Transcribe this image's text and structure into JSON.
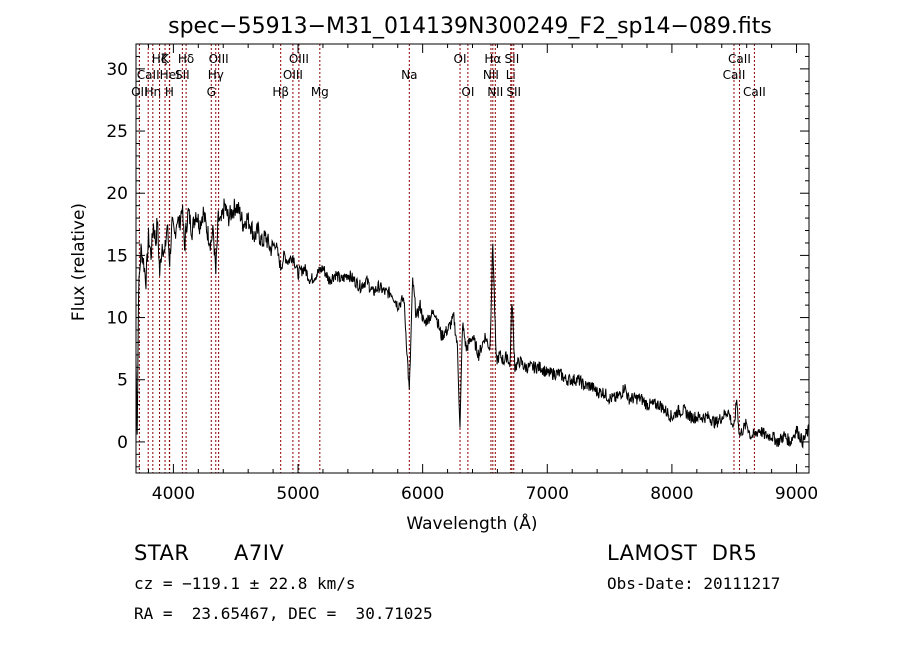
{
  "chart_data": {
    "type": "line",
    "title": "spec−55913−M31_014139N300249_F2_sp14−089.fits",
    "xlabel": "Wavelength (Å)",
    "ylabel": "Flux (relative)",
    "xlim": [
      3700,
      9100
    ],
    "ylim": [
      -2.5,
      32
    ],
    "xticks": [
      4000,
      5000,
      6000,
      7000,
      8000,
      9000
    ],
    "yticks": [
      0,
      5,
      10,
      15,
      20,
      25,
      30
    ],
    "grid": false,
    "series": [
      {
        "x": [
          3700,
          3710,
          3720,
          3740,
          3760,
          3780,
          3800,
          3820,
          3840,
          3860,
          3870,
          3890,
          3910,
          3930,
          3950,
          3970,
          3990,
          4010,
          4030,
          4050,
          4070,
          4090,
          4100,
          4120,
          4150,
          4180,
          4210,
          4240,
          4270,
          4300,
          4320,
          4340,
          4360,
          4380,
          4410,
          4440,
          4470,
          4500,
          4530,
          4560,
          4590,
          4620,
          4650,
          4680,
          4710,
          4740,
          4780,
          4820,
          4861,
          4890,
          4920,
          4960,
          5000,
          5050,
          5100,
          5150,
          5200,
          5250,
          5300,
          5350,
          5400,
          5450,
          5500,
          5550,
          5600,
          5650,
          5700,
          5750,
          5800,
          5850,
          5893,
          5920,
          5950,
          5980,
          6010,
          6050,
          6100,
          6150,
          6200,
          6250,
          6280,
          6300,
          6320,
          6350,
          6400,
          6450,
          6500,
          6540,
          6563,
          6590,
          6620,
          6650,
          6680,
          6700,
          6716,
          6740,
          6780,
          6820,
          6860,
          6900,
          6950,
          7000,
          7050,
          7100,
          7150,
          7200,
          7250,
          7300,
          7350,
          7400,
          7450,
          7500,
          7550,
          7600,
          7620,
          7650,
          7700,
          7750,
          7800,
          7850,
          7900,
          7950,
          8000,
          8050,
          8100,
          8150,
          8200,
          8250,
          8300,
          8350,
          8400,
          8450,
          8498,
          8520,
          8542,
          8570,
          8600,
          8630,
          8662,
          8700,
          8750,
          8800,
          8850,
          8900,
          8950,
          9000,
          9050,
          9100
        ],
        "y": [
          6.5,
          1,
          12,
          15.5,
          14.5,
          13,
          16.5,
          15,
          17.5,
          16,
          18,
          13.5,
          16,
          15,
          17.5,
          14.5,
          17.5,
          16.5,
          18,
          17.5,
          19,
          15.5,
          17,
          18.5,
          17,
          18.5,
          17.5,
          18.5,
          17,
          16,
          17,
          13.5,
          18,
          17.5,
          19,
          18,
          18.5,
          19,
          18.5,
          17.5,
          18,
          17.5,
          16.5,
          17,
          16,
          16.5,
          15.5,
          16,
          14,
          15,
          14.5,
          15,
          13.5,
          14,
          13,
          13.5,
          14,
          13,
          13.5,
          13,
          13.5,
          13,
          12.5,
          13,
          12,
          12.5,
          12,
          12,
          11,
          11.5,
          4,
          13,
          10,
          11,
          9.5,
          10,
          10.5,
          8.5,
          9,
          10,
          7.5,
          1,
          9.5,
          7.5,
          8.5,
          7,
          8.5,
          7.5,
          16,
          6.5,
          7,
          6.5,
          7,
          6,
          11.5,
          6,
          6.5,
          6,
          6,
          6,
          6,
          5.5,
          5.5,
          5.5,
          5,
          5,
          5,
          4.5,
          4.5,
          4,
          4,
          3.5,
          3.5,
          4,
          4.5,
          3.5,
          3.5,
          3.5,
          3,
          3,
          3,
          2.5,
          2,
          2.5,
          2.5,
          2,
          2,
          2,
          2,
          1.5,
          2,
          2.5,
          1,
          3.5,
          0.5,
          1,
          1.5,
          0.5,
          0.5,
          1,
          0.5,
          0.5,
          0,
          0.5,
          0,
          1,
          0,
          1
        ]
      }
    ],
    "lines": [
      {
        "x": 3727,
        "label": "OII",
        "row": 3
      },
      {
        "x": 3798,
        "label": "CaII",
        "row": 2
      },
      {
        "x": 3835,
        "label": "Hη",
        "row": 3
      },
      {
        "x": 3889,
        "label": "Hζ",
        "row": 1
      },
      {
        "x": 3933,
        "label": "K",
        "row": 1
      },
      {
        "x": 3968,
        "label": "H",
        "row": 3
      },
      {
        "x": 3970,
        "label": "HeI",
        "row": 2
      },
      {
        "x": 4072,
        "label": "SII",
        "row": 2
      },
      {
        "x": 4102,
        "label": "Hδ",
        "row": 1
      },
      {
        "x": 4304,
        "label": "G",
        "row": 3
      },
      {
        "x": 4340,
        "label": "Hγ",
        "row": 2
      },
      {
        "x": 4363,
        "label": "OIII",
        "row": 1
      },
      {
        "x": 4861,
        "label": "Hβ",
        "row": 3
      },
      {
        "x": 4959,
        "label": "OIII",
        "row": 2
      },
      {
        "x": 5007,
        "label": "OIII",
        "row": 1
      },
      {
        "x": 5175,
        "label": "Mg",
        "row": 3
      },
      {
        "x": 5893,
        "label": "Na",
        "row": 2
      },
      {
        "x": 6300,
        "label": "OI",
        "row": 1
      },
      {
        "x": 6363,
        "label": "OI",
        "row": 3
      },
      {
        "x": 6548,
        "label": "NII",
        "row": 2
      },
      {
        "x": 6563,
        "label": "Hα",
        "row": 1
      },
      {
        "x": 6583,
        "label": "NII",
        "row": 3
      },
      {
        "x": 6707,
        "label": "Li",
        "row": 2
      },
      {
        "x": 6716,
        "label": "SII",
        "row": 1
      },
      {
        "x": 6731,
        "label": "SII",
        "row": 3
      },
      {
        "x": 8498,
        "label": "CaII",
        "row": 2
      },
      {
        "x": 8542,
        "label": "CaII",
        "row": 1
      },
      {
        "x": 8662,
        "label": "CaII",
        "row": 3
      }
    ],
    "line_color": "#8b0000"
  },
  "info": {
    "class": "STAR",
    "subclass": "A7IV",
    "survey": "LAMOST  DR5",
    "cz": "cz = −119.1 ± 22.8 km/s",
    "obs_date": "Obs-Date: 20111217",
    "coords": "RA =  23.65467, DEC =  30.71025"
  }
}
